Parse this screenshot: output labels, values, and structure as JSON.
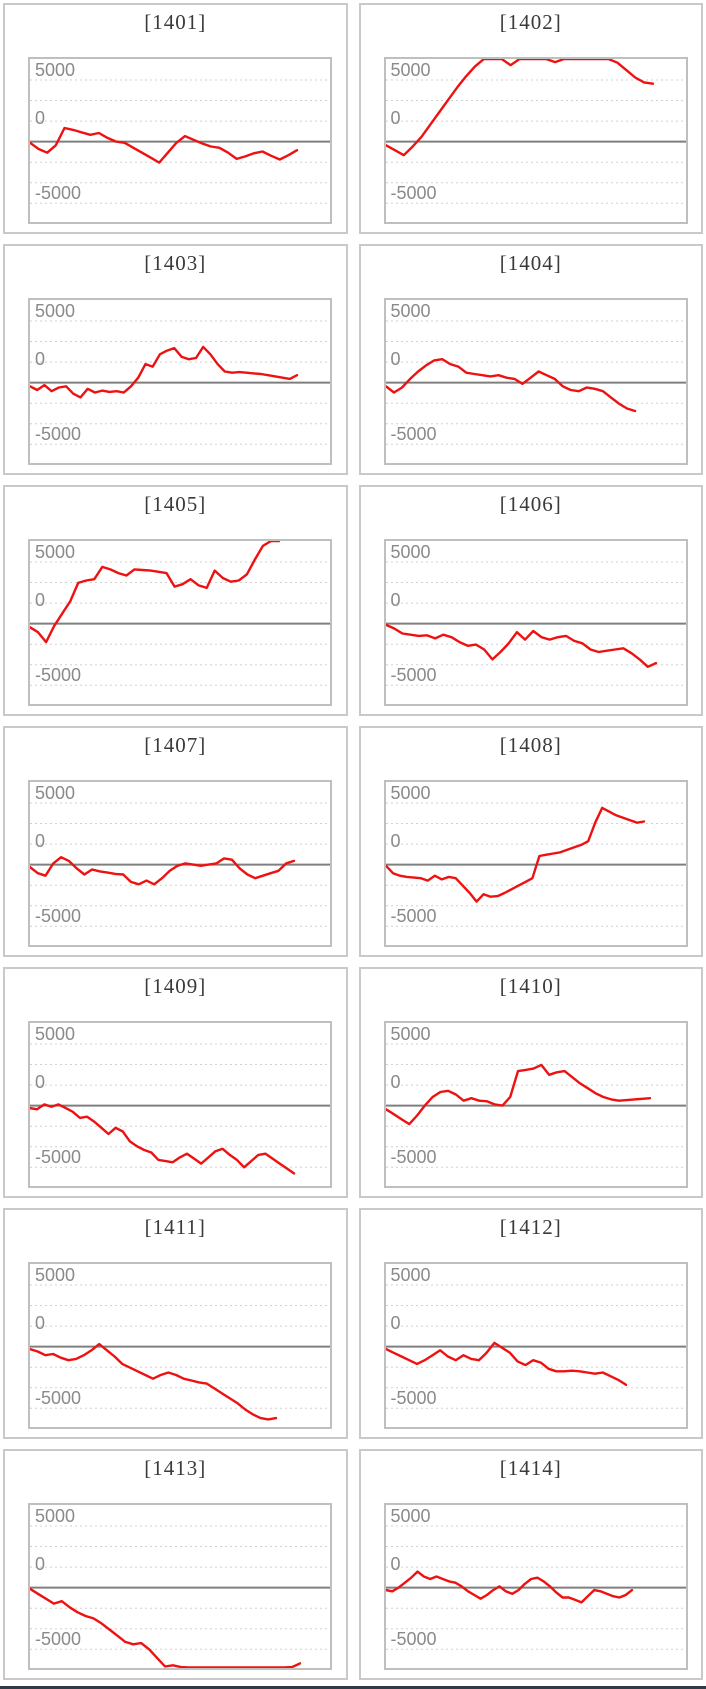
{
  "axis": {
    "tick_labels": [
      "5000",
      "0",
      "-5000"
    ],
    "ylim": [
      -6520,
      6700
    ],
    "gridline_values": [
      5000,
      3333,
      1667,
      -1667,
      -3333,
      -5000
    ],
    "zero_line_value": 0,
    "grid": "on",
    "legend": "none"
  },
  "colors": {
    "line": "#ee1111",
    "zero_line": "#7f7f7f",
    "grid": "#d0d0d0",
    "plot_border": "#bfbfbf",
    "cell_border": "#c9c9c9",
    "tick_label": "#8a8a8a",
    "title": "#3a3a3a",
    "bottom_bar": "#333a47"
  },
  "chart_data": [
    {
      "type": "line",
      "title": "[1401]",
      "machine_no": "1401",
      "span": 0.89,
      "values": [
        -100,
        -600,
        -900,
        -300,
        1100,
        950,
        750,
        550,
        700,
        300,
        0,
        -100,
        -500,
        -900,
        -1300,
        -1700,
        -900,
        -100,
        450,
        150,
        -150,
        -400,
        -500,
        -900,
        -1400,
        -1200,
        -950,
        -800,
        -1150,
        -1450,
        -1100,
        -700
      ]
    },
    {
      "type": "line",
      "title": "[1402]",
      "machine_no": "1402",
      "span": 0.89,
      "values": [
        -300,
        -700,
        -1100,
        -400,
        400,
        1400,
        2400,
        3400,
        4400,
        5300,
        6100,
        6700,
        6700,
        6700,
        6200,
        6700,
        6700,
        6700,
        6700,
        6450,
        6700,
        6700,
        6700,
        6700,
        6700,
        6700,
        6400,
        5800,
        5200,
        4800,
        4700
      ]
    },
    {
      "type": "line",
      "title": "[1403]",
      "machine_no": "1403",
      "span": 0.89,
      "values": [
        -300,
        -600,
        -200,
        -700,
        -400,
        -300,
        -900,
        -1200,
        -500,
        -800,
        -650,
        -750,
        -700,
        -800,
        -300,
        400,
        1500,
        1300,
        2300,
        2600,
        2800,
        2100,
        1900,
        2000,
        2900,
        2300,
        1500,
        900,
        800,
        850,
        800,
        750,
        700,
        600,
        500,
        400,
        300,
        600
      ]
    },
    {
      "type": "line",
      "title": "[1404]",
      "machine_no": "1404",
      "span": 0.83,
      "values": [
        -300,
        -800,
        -400,
        300,
        900,
        1400,
        1800,
        1900,
        1500,
        1300,
        800,
        700,
        600,
        500,
        600,
        400,
        300,
        -100,
        400,
        900,
        600,
        300,
        -300,
        -600,
        -700,
        -400,
        -500,
        -700,
        -1200,
        -1700,
        -2100,
        -2300
      ]
    },
    {
      "type": "line",
      "title": "[1405]",
      "machine_no": "1405",
      "span": 0.83,
      "values": [
        -300,
        -700,
        -1500,
        -200,
        800,
        1800,
        3300,
        3500,
        3600,
        4600,
        4400,
        4100,
        3900,
        4400,
        4350,
        4300,
        4200,
        4100,
        3000,
        3200,
        3600,
        3100,
        2900,
        4300,
        3700,
        3400,
        3500,
        4000,
        5200,
        6300,
        6700,
        6700
      ]
    },
    {
      "type": "line",
      "title": "[1406]",
      "machine_no": "1406",
      "span": 0.9,
      "values": [
        -100,
        -400,
        -800,
        -900,
        -1000,
        -950,
        -1200,
        -900,
        -1100,
        -1500,
        -1800,
        -1700,
        -2100,
        -2900,
        -2300,
        -1600,
        -700,
        -1300,
        -600,
        -1100,
        -1300,
        -1100,
        -1000,
        -1400,
        -1600,
        -2100,
        -2300,
        -2200,
        -2100,
        -2000,
        -2400,
        -2900,
        -3500,
        -3200
      ]
    },
    {
      "type": "line",
      "title": "[1407]",
      "machine_no": "1407",
      "span": 0.88,
      "values": [
        -200,
        -700,
        -900,
        100,
        600,
        300,
        -300,
        -800,
        -400,
        -550,
        -650,
        -750,
        -800,
        -1400,
        -1600,
        -1300,
        -1600,
        -1100,
        -500,
        -100,
        100,
        0,
        -100,
        0,
        100,
        500,
        400,
        -300,
        -800,
        -1100,
        -900,
        -700,
        -500,
        100,
        300
      ]
    },
    {
      "type": "line",
      "title": "[1408]",
      "machine_no": "1408",
      "span": 0.86,
      "values": [
        -100,
        -700,
        -900,
        -1000,
        -1050,
        -1100,
        -1300,
        -900,
        -1200,
        -1000,
        -1100,
        -1700,
        -2300,
        -3000,
        -2400,
        -2600,
        -2550,
        -2300,
        -2000,
        -1700,
        -1400,
        -1100,
        700,
        800,
        900,
        1000,
        1200,
        1400,
        1600,
        1900,
        3400,
        4600,
        4300,
        4000,
        3800,
        3600,
        3400,
        3500
      ]
    },
    {
      "type": "line",
      "title": "[1409]",
      "machine_no": "1409",
      "span": 0.88,
      "values": [
        -200,
        -300,
        100,
        -100,
        100,
        -200,
        -500,
        -1000,
        -900,
        -1300,
        -1800,
        -2300,
        -1800,
        -2100,
        -2900,
        -3300,
        -3600,
        -3800,
        -4400,
        -4500,
        -4600,
        -4200,
        -3900,
        -4300,
        -4700,
        -4200,
        -3700,
        -3500,
        -4000,
        -4400,
        -5000,
        -4500,
        -4000,
        -3900,
        -4300,
        -4700,
        -5100,
        -5500
      ]
    },
    {
      "type": "line",
      "title": "[1410]",
      "machine_no": "1410",
      "span": 0.88,
      "values": [
        -300,
        -700,
        -1100,
        -1500,
        -800,
        0,
        700,
        1100,
        1200,
        900,
        400,
        600,
        400,
        350,
        100,
        0,
        700,
        2800,
        2900,
        3000,
        3300,
        2500,
        2700,
        2800,
        2300,
        1800,
        1400,
        1000,
        700,
        500,
        400,
        450,
        500,
        550,
        600
      ]
    },
    {
      "type": "line",
      "title": "[1411]",
      "machine_no": "1411",
      "span": 0.82,
      "values": [
        -200,
        -400,
        -700,
        -600,
        -900,
        -1100,
        -1000,
        -700,
        -300,
        200,
        -300,
        -800,
        -1400,
        -1700,
        -2000,
        -2300,
        -2600,
        -2300,
        -2100,
        -2300,
        -2600,
        -2750,
        -2900,
        -3000,
        -3400,
        -3800,
        -4200,
        -4600,
        -5100,
        -5500,
        -5800,
        -5900,
        -5800
      ]
    },
    {
      "type": "line",
      "title": "[1412]",
      "machine_no": "1412",
      "span": 0.8,
      "values": [
        -200,
        -500,
        -800,
        -1100,
        -1400,
        -1100,
        -700,
        -300,
        -800,
        -1100,
        -700,
        -1000,
        -1100,
        -500,
        300,
        -100,
        -500,
        -1200,
        -1500,
        -1100,
        -1300,
        -1800,
        -2000,
        -2000,
        -1950,
        -2000,
        -2100,
        -2200,
        -2100,
        -2400,
        -2700,
        -3100
      ]
    },
    {
      "type": "line",
      "title": "[1413]",
      "machine_no": "1413",
      "span": 0.9,
      "values": [
        -100,
        -500,
        -900,
        -1300,
        -1100,
        -1600,
        -2000,
        -2300,
        -2500,
        -2900,
        -3400,
        -3900,
        -4400,
        -4600,
        -4500,
        -5000,
        -5700,
        -6400,
        -6300,
        -6450,
        -6480,
        -6480,
        -6480,
        -6480,
        -6480,
        -6480,
        -6480,
        -6480,
        -6480,
        -6480,
        -6480,
        -6480,
        -6480,
        -6450,
        -6150
      ]
    },
    {
      "type": "line",
      "title": "[1414]",
      "machine_no": "1414",
      "span": 0.82,
      "values": [
        -200,
        -300,
        0,
        400,
        800,
        1300,
        900,
        700,
        900,
        700,
        500,
        400,
        100,
        -300,
        -600,
        -900,
        -600,
        -200,
        100,
        -300,
        -500,
        -200,
        300,
        700,
        800,
        500,
        100,
        -400,
        -800,
        -800,
        -1000,
        -1200,
        -700,
        -200,
        -300,
        -500,
        -700,
        -800,
        -600,
        -200
      ]
    }
  ]
}
